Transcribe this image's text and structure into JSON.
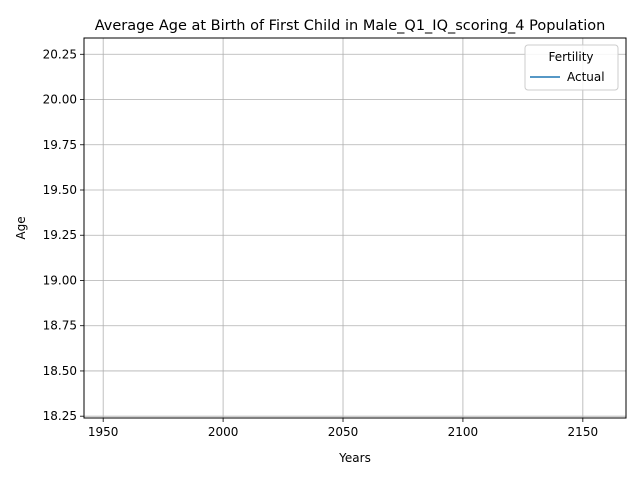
{
  "chart_data": {
    "type": "line",
    "title": "Average Age at Birth of First Child in Male_Q1_IQ_scoring_4 Population",
    "xlabel": "Years",
    "ylabel": "Age",
    "xlim": [
      1942,
      2168
    ],
    "ylim": [
      18.24,
      20.34
    ],
    "x_ticks": [
      1950,
      2000,
      2050,
      2100,
      2150
    ],
    "x_tick_labels": [
      "1950",
      "2000",
      "2050",
      "2100",
      "2150"
    ],
    "y_ticks": [
      18.25,
      18.5,
      18.75,
      19.0,
      19.25,
      19.5,
      19.75,
      20.0,
      20.25
    ],
    "y_tick_labels": [
      "18.25",
      "18.50",
      "18.75",
      "19.00",
      "19.25",
      "19.50",
      "19.75",
      "20.00",
      "20.25"
    ],
    "grid": true,
    "legend": {
      "title": "Fertility",
      "placement": "top-right",
      "entries": [
        "Actual"
      ]
    },
    "series": [
      {
        "name": "Actual",
        "color": "#1f77b4",
        "x": [],
        "values": []
      }
    ]
  }
}
